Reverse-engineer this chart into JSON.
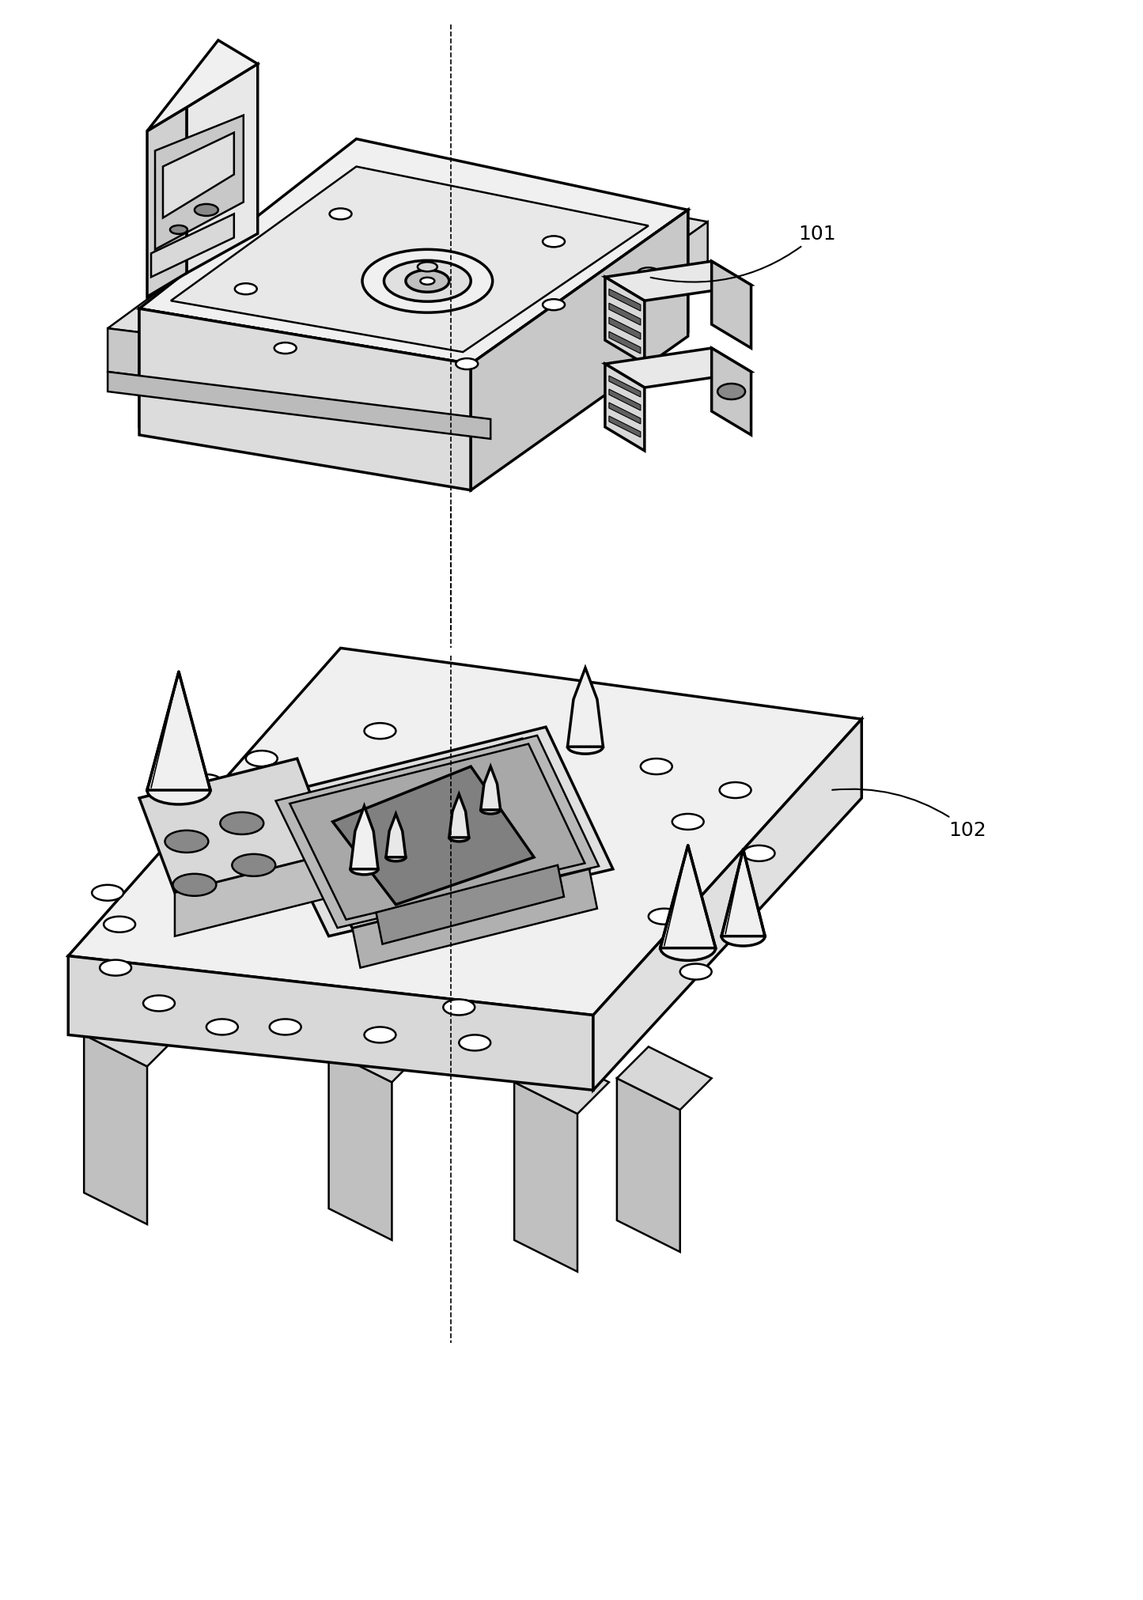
{
  "background_color": "#ffffff",
  "line_color": "#000000",
  "label_101": "101",
  "label_102": "102",
  "fig_width": 14.45,
  "fig_height": 20.24,
  "dpi": 100,
  "font_size": 18
}
